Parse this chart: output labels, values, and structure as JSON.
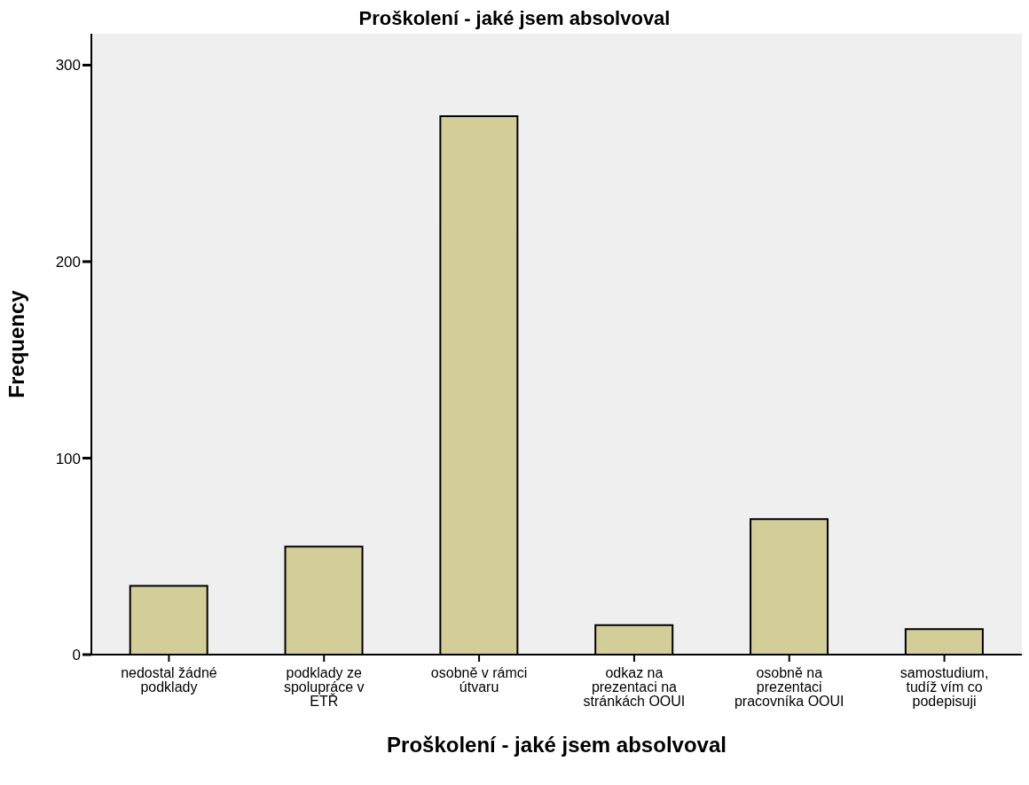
{
  "chart_data": {
    "type": "bar",
    "title": "Proškolení - jaké jsem absolvoval",
    "xlabel": "Proškolení - jaké jsem absolvoval",
    "ylabel": "Frequency",
    "categories": [
      "nedostal žádné podklady",
      "podklady ze spolupráce v ETŘ",
      "osobně v rámci útvaru",
      "odkaz na prezentaci na stránkách OOUI",
      "osobně na prezentaci pracovníka OOUI",
      "samostudium, tudíž vím co podepisuji"
    ],
    "values": [
      35,
      55,
      274,
      15,
      69,
      13
    ],
    "color": "#d3ce98",
    "ylim": [
      0,
      316
    ],
    "yticks": [
      0,
      100,
      200,
      300
    ],
    "grid": false
  }
}
